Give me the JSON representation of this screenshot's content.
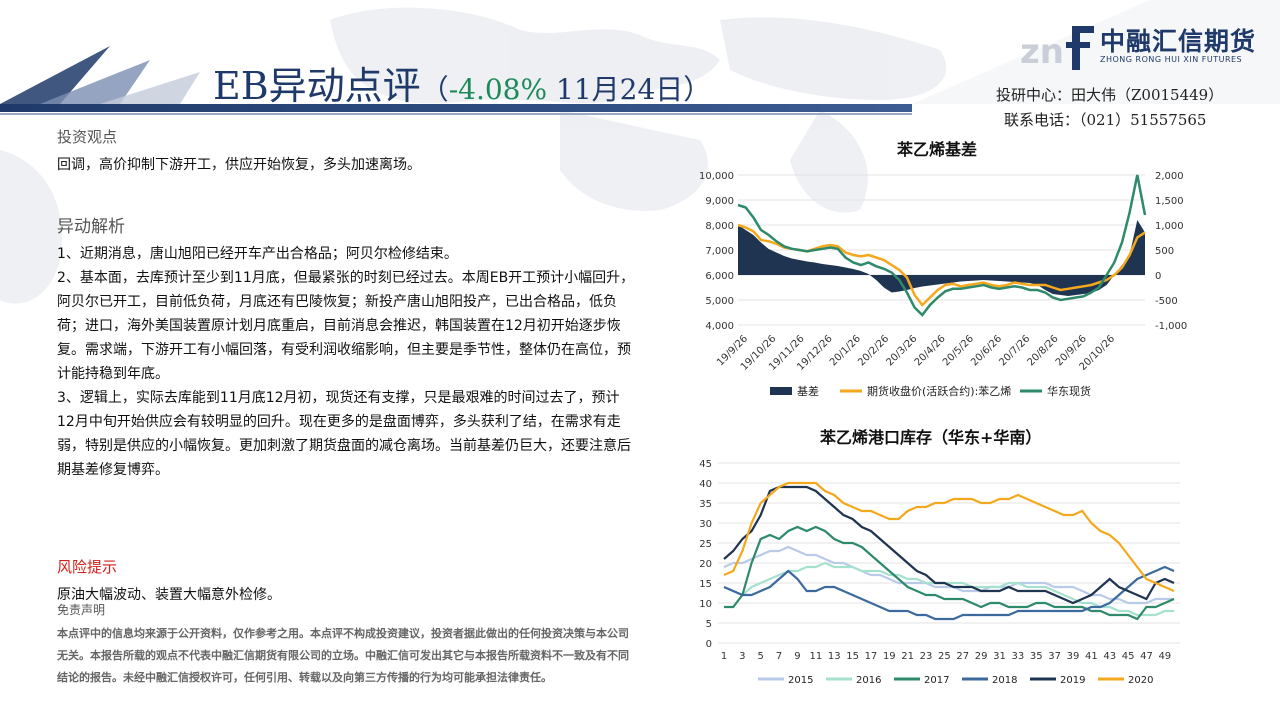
{
  "header": {
    "title": "EB异动点评",
    "change_open": "（",
    "change_pct": "-4.08%",
    "change_date": " 11月24日）",
    "analyst": "投研中心：田大伟（Z0015449）",
    "phone": "联系电话：（021）51557565"
  },
  "logo": {
    "cn": "中融汇信期货",
    "en": "ZHONG RONG HUI XIN FUTURES",
    "colors": {
      "navy": "#1f3a6a",
      "grey": "#c9ced8"
    }
  },
  "view": {
    "heading": "投资观点",
    "text": "回调，高价抑制下游开工，供应开始恢复，多头加速离场。"
  },
  "analysis": {
    "heading": "异动解析",
    "paragraphs": [
      "1、近期消息，唐山旭阳已经开车产出合格品；阿贝尔检修结束。",
      "2、基本面，去库预计至少到11月底，但最紧张的时刻已经过去。本周EB开工预计小幅回升，阿贝尔已开工，目前低负荷，月底还有巴陵恢复；新投产唐山旭阳投产，已出合格品，低负荷；进口，海外美国装置原计划月底重启，目前消息会推迟，韩国装置在12月初开始逐步恢复。需求端，下游开工有小幅回落，有受利润收缩影响，但主要是季节性，整体仍在高位，预计能持稳到年底。",
      "3、逻辑上，实际去库能到11月底12月初，现货还有支撑，只是最艰难的时间过去了，预计12月中旬开始供应会有较明显的回升。现在更多的是盘面博弈，多头获利了结，在需求有走弱，特别是供应的小幅恢复。更加刺激了期货盘面的减仓离场。当前基差仍巨大，还要注意后期基差修复博弈。"
    ]
  },
  "risk": {
    "heading": "风险提示",
    "text": "原油大幅波动、装置大幅意外检修。"
  },
  "disclaimer": {
    "heading": "免责声明",
    "text": "本点评中的信息均来源于公开资料，仅作参考之用。本点评不构成投资建议，投资者据此做出的任何投资决策与本公司无关。本报告所载的观点不代表中融汇信期货有限公司的立场。中融汇信可发出其它与本报告所载资料不一致及有不同结论的报告。未经中融汇信授权许可，任何引用、转载以及向第三方传播的行为均可能承担法律责任。"
  },
  "chart_data": [
    {
      "type": "line",
      "title": "苯乙烯基差",
      "x_tick_labels": [
        "19/9/26",
        "19/10/26",
        "19/11/26",
        "19/12/26",
        "20/1/26",
        "20/2/26",
        "20/3/26",
        "20/4/26",
        "20/5/26",
        "20/6/26",
        "20/7/26",
        "20/8/26",
        "20/9/26",
        "20/10/26"
      ],
      "y_left": {
        "min": 4000,
        "max": 10000,
        "ticks": [
          "4,000",
          "5,000",
          "6,000",
          "7,000",
          "8,000",
          "9,000",
          "10,000"
        ]
      },
      "y_right": {
        "min": -1000,
        "max": 2000,
        "ticks": [
          "-1,000",
          "-500",
          "0",
          "500",
          "1,000",
          "1,500",
          "2,000"
        ]
      },
      "series": [
        {
          "name": "基差",
          "kind": "area",
          "axis": "right",
          "color": "#1f3450",
          "values": [
            1000,
            900,
            800,
            650,
            520,
            450,
            380,
            330,
            300,
            270,
            250,
            220,
            200,
            180,
            150,
            120,
            80,
            20,
            -100,
            -250,
            -350,
            -330,
            -300,
            -260,
            -230,
            -210,
            -190,
            -170,
            -150,
            -130,
            -120,
            -110,
            -100,
            -110,
            -120,
            -130,
            -140,
            -150,
            -160,
            -200,
            -300,
            -380,
            -400,
            -420,
            -400,
            -380,
            -360,
            -300,
            -200,
            0,
            200,
            400,
            1100,
            850
          ]
        },
        {
          "name": "期货收盘价(活跃合约):苯乙烯",
          "kind": "line",
          "axis": "left",
          "color": "#f4a81d",
          "values": [
            8000,
            7900,
            7750,
            7400,
            7350,
            7250,
            7100,
            7050,
            7000,
            6950,
            7050,
            7150,
            7200,
            7150,
            6900,
            6800,
            6750,
            6800,
            6700,
            6600,
            6400,
            6200,
            5900,
            5200,
            4800,
            5100,
            5400,
            5600,
            5650,
            5550,
            5600,
            5650,
            5700,
            5600,
            5550,
            5600,
            5700,
            5650,
            5600,
            5600,
            5600,
            5500,
            5400,
            5450,
            5500,
            5550,
            5600,
            5700,
            5800,
            6000,
            6300,
            6800,
            7500,
            7700
          ]
        },
        {
          "name": "华东现货",
          "kind": "line",
          "axis": "left",
          "color": "#2e8a6a",
          "values": [
            8800,
            8700,
            8300,
            7800,
            7600,
            7350,
            7150,
            7050,
            7000,
            6950,
            7000,
            7050,
            7100,
            7050,
            6700,
            6500,
            6400,
            6500,
            6350,
            6250,
            6100,
            5800,
            5300,
            4700,
            4400,
            4800,
            5100,
            5350,
            5450,
            5450,
            5500,
            5550,
            5600,
            5500,
            5450,
            5500,
            5550,
            5500,
            5400,
            5400,
            5300,
            5100,
            5000,
            5050,
            5100,
            5150,
            5300,
            5500,
            6000,
            6500,
            7300,
            8500,
            10000,
            8400
          ]
        }
      ]
    },
    {
      "type": "line",
      "title": "苯乙烯港口库存（华东+华南）",
      "x_tick_labels": [
        "1",
        "3",
        "5",
        "7",
        "9",
        "11",
        "13",
        "15",
        "17",
        "19",
        "21",
        "23",
        "25",
        "27",
        "29",
        "31",
        "33",
        "35",
        "37",
        "39",
        "41",
        "43",
        "45",
        "47",
        "49"
      ],
      "y": {
        "min": 0,
        "max": 45,
        "ticks": [
          "0",
          "5",
          "10",
          "15",
          "20",
          "25",
          "30",
          "35",
          "40",
          "45"
        ]
      },
      "series": [
        {
          "name": "2015",
          "color": "#b9cbe8",
          "values": [
            19,
            20,
            20,
            21,
            22,
            23,
            23,
            24,
            23,
            22,
            22,
            21,
            20,
            20,
            19,
            18,
            17,
            17,
            16,
            15,
            15,
            15,
            15,
            14,
            14,
            14,
            13,
            13,
            13,
            14,
            14,
            14,
            15,
            15,
            15,
            15,
            14,
            14,
            14,
            13,
            12,
            12,
            11,
            11,
            10,
            10,
            10,
            11,
            11,
            11
          ]
        },
        {
          "name": "2016",
          "color": "#a6e0cf",
          "values": [
            14,
            13,
            12,
            14,
            15,
            16,
            17,
            18,
            18,
            19,
            19,
            20,
            19,
            19,
            19,
            18,
            18,
            18,
            17,
            17,
            16,
            16,
            15,
            15,
            15,
            15,
            15,
            14,
            14,
            14,
            14,
            15,
            15,
            14,
            14,
            14,
            13,
            12,
            11,
            10,
            10,
            9,
            9,
            8,
            8,
            7,
            7,
            7,
            8,
            8
          ]
        },
        {
          "name": "2017",
          "color": "#2e8a6a",
          "values": [
            9,
            9,
            12,
            20,
            26,
            27,
            26,
            28,
            29,
            28,
            29,
            28,
            26,
            25,
            25,
            24,
            22,
            20,
            18,
            16,
            14,
            13,
            12,
            12,
            11,
            11,
            11,
            10,
            9,
            10,
            10,
            9,
            9,
            9,
            10,
            10,
            9,
            9,
            9,
            9,
            8,
            8,
            7,
            7,
            7,
            6,
            9,
            9,
            10,
            11
          ]
        },
        {
          "name": "2018",
          "color": "#3d6a9e",
          "values": [
            14,
            13,
            12,
            12,
            13,
            14,
            16,
            18,
            16,
            13,
            13,
            14,
            14,
            13,
            12,
            11,
            10,
            9,
            8,
            8,
            8,
            7,
            7,
            6,
            6,
            6,
            7,
            7,
            7,
            7,
            7,
            7,
            8,
            8,
            8,
            8,
            8,
            8,
            8,
            8,
            9,
            9,
            10,
            12,
            14,
            16,
            17,
            18,
            19,
            18
          ]
        },
        {
          "name": "2019",
          "color": "#1f3450",
          "values": [
            21,
            23,
            26,
            28,
            32,
            38,
            39,
            39,
            39,
            39,
            38,
            36,
            34,
            32,
            31,
            29,
            28,
            26,
            24,
            22,
            20,
            18,
            17,
            15,
            15,
            14,
            14,
            14,
            13,
            13,
            13,
            14,
            13,
            13,
            13,
            13,
            12,
            11,
            10,
            11,
            12,
            14,
            16,
            14,
            13,
            12,
            11,
            15,
            16,
            15
          ]
        },
        {
          "name": "2020",
          "color": "#f4a81d",
          "values": [
            17,
            18,
            23,
            30,
            35,
            37,
            39,
            40,
            40,
            40,
            40,
            38,
            37,
            35,
            34,
            33,
            33,
            32,
            31,
            31,
            33,
            34,
            34,
            35,
            35,
            36,
            36,
            36,
            35,
            35,
            36,
            36,
            37,
            36,
            35,
            34,
            33,
            32,
            32,
            33,
            30,
            28,
            27,
            25,
            22,
            19,
            16,
            15,
            14,
            13
          ]
        }
      ]
    }
  ]
}
